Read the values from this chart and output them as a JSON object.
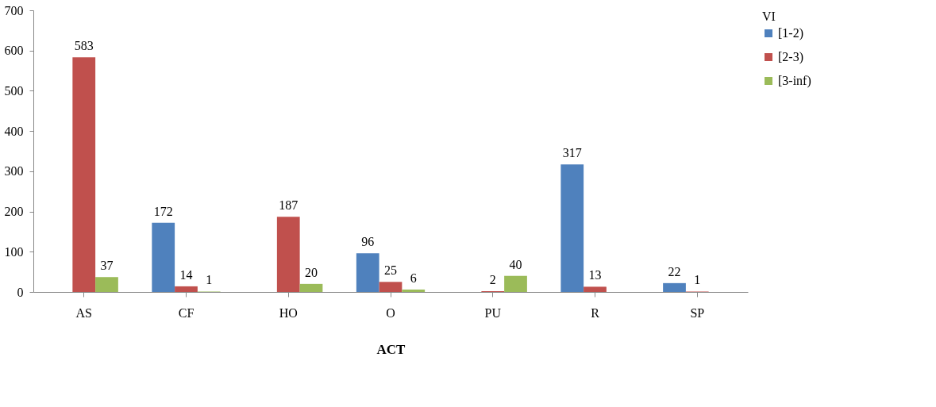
{
  "chart_data": {
    "type": "bar",
    "xlabel": "ACT",
    "legend_title": "VI",
    "categories": [
      "AS",
      "CF",
      "HO",
      "O",
      "PU",
      "R",
      "SP"
    ],
    "series": [
      {
        "name": "[1-2)",
        "color": "#4f81bd",
        "values": [
          null,
          172,
          null,
          96,
          null,
          317,
          22
        ]
      },
      {
        "name": "[2-3)",
        "color": "#c0504d",
        "values": [
          583,
          14,
          187,
          25,
          2,
          13,
          1
        ]
      },
      {
        "name": "[3-inf)",
        "color": "#9bbb59",
        "values": [
          37,
          1,
          20,
          6,
          40,
          null,
          null
        ]
      }
    ],
    "ylim": [
      0,
      700
    ],
    "yticks": [
      0,
      100,
      200,
      300,
      400,
      500,
      600,
      700
    ],
    "grid": false,
    "legend": "right",
    "data_labels": true
  }
}
